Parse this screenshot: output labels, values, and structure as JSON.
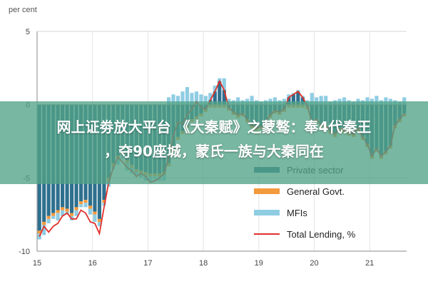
{
  "unit_label": "per cent",
  "chart_data": {
    "type": "bar",
    "ylim": [
      -10,
      5
    ],
    "yticks": [
      5,
      0,
      -5,
      -10
    ],
    "xticks": [
      "15",
      "16",
      "17",
      "18",
      "19",
      "20",
      "21"
    ],
    "grid": true,
    "legend_position": "bottom-right",
    "months": 80,
    "series": [
      {
        "name": "Private sector",
        "type": "bar",
        "color": "#2e6f8e",
        "values": [
          -8.6,
          -8.0,
          -7.6,
          -7.4,
          -7.2,
          -7.0,
          -7.1,
          -7.4,
          -7.0,
          -6.6,
          -6.5,
          -6.9,
          -7.3,
          -7.8,
          -6.5,
          -5.0,
          -4.0,
          -3.5,
          -3.2,
          -3.8,
          -4.1,
          -4.4,
          -4.5,
          -4.6,
          -4.7,
          -4.7,
          -4.7,
          -4.6,
          -4.0,
          -3.0,
          -2.2,
          -1.8,
          -1.4,
          -1.0,
          -0.8,
          -0.6,
          -0.3,
          0.3,
          0.9,
          1.6,
          1.0,
          -0.2,
          -0.5,
          -0.7,
          -0.6,
          -1.0,
          -1.4,
          -1.6,
          -1.5,
          -1.2,
          -0.7,
          -0.4,
          -0.5,
          -0.3,
          0.5,
          0.7,
          0.9,
          0.5,
          -0.1,
          -1.2,
          -1.0,
          -1.4,
          -1.4,
          -1.8,
          -2.0,
          -1.6,
          -1.7,
          -1.9,
          -2.0,
          -1.6,
          -2.2,
          -2.7,
          -3.5,
          -3.0,
          -3.5,
          -3.2,
          -2.8,
          -1.4,
          -1.0,
          -0.6
        ]
      },
      {
        "name": "General Govt.",
        "type": "bar",
        "color": "#f39a3d",
        "values": [
          -0.2,
          -0.2,
          -0.2,
          -0.2,
          -0.2,
          -0.2,
          -0.2,
          -0.2,
          -0.2,
          -0.2,
          -0.2,
          -0.2,
          -0.2,
          -0.2,
          -0.2,
          -0.2,
          -0.2,
          -0.2,
          -0.2,
          -0.2,
          -0.2,
          -0.2,
          -0.2,
          -0.2,
          -0.2,
          -0.2,
          -0.2,
          -0.2,
          -0.2,
          -0.2,
          -0.2,
          -0.2,
          -0.2,
          -0.2,
          -0.2,
          -0.2,
          -0.2,
          -0.2,
          -0.2,
          -0.2,
          -0.2,
          -0.2,
          -0.2,
          -0.2,
          -0.2,
          -0.2,
          -0.2,
          -0.2,
          -0.2,
          -0.2,
          -0.2,
          -0.2,
          -0.2,
          -0.2,
          -0.2,
          -0.2,
          -0.2,
          -0.2,
          -0.2,
          -0.2,
          -0.2,
          -0.2,
          -0.2,
          -0.2,
          -0.2,
          -0.2,
          -0.2,
          -0.2,
          -0.2,
          -0.2,
          -0.2,
          -0.2,
          -0.2,
          -0.2,
          -0.2,
          -0.2,
          -0.2,
          -0.2,
          -0.2,
          -0.2
        ]
      },
      {
        "name": "MFIs",
        "type": "bar",
        "color": "#8fcde3",
        "values": [
          -0.4,
          -0.7,
          -0.3,
          -0.2,
          -0.5,
          -0.4,
          -0.2,
          -0.3,
          -0.4,
          -0.2,
          -0.3,
          -0.4,
          -0.5,
          -0.3,
          -0.2,
          -0.4,
          -0.2,
          -0.4,
          -0.3,
          -0.5,
          -0.4,
          -0.2,
          -0.3,
          -0.4,
          -0.3,
          -0.2,
          -0.3,
          -0.4,
          0.5,
          0.7,
          0.6,
          0.9,
          1.2,
          0.8,
          0.9,
          0.7,
          0.6,
          0.5,
          0.4,
          0.2,
          0.8,
          0.4,
          0.3,
          0.5,
          0.3,
          0.4,
          0.6,
          0.3,
          0.2,
          0.3,
          0.4,
          0.5,
          0.3,
          0.4,
          0.2,
          0.1,
          0.1,
          0.1,
          0.3,
          0.8,
          0.5,
          0.6,
          0.6,
          0.2,
          0.3,
          0.4,
          0.5,
          0.3,
          0.2,
          0.4,
          0.3,
          0.5,
          0.4,
          0.6,
          0.3,
          0.5,
          0.4,
          0.3,
          0.2,
          0.5
        ]
      },
      {
        "name": "Total Lending, %",
        "type": "line",
        "color": "#e1302c",
        "values": [
          -9.0,
          -8.3,
          -8.7,
          -8.3,
          -8.1,
          -7.6,
          -7.4,
          -7.8,
          -7.8,
          -7.2,
          -7.4,
          -8.0,
          -8.1,
          -8.8,
          -7.0,
          -5.3,
          -4.3,
          -3.6,
          -3.9,
          -4.3,
          -4.5,
          -4.9,
          -4.7,
          -4.9,
          -5.3,
          -5.2,
          -5.0,
          -4.7,
          -3.6,
          -2.1,
          -1.2,
          -1.3,
          -0.7,
          -0.3,
          0.2,
          -0.2,
          -0.3,
          0.3,
          0.9,
          1.6,
          1.0,
          -0.2,
          -0.5,
          -0.7,
          -0.6,
          -1.0,
          -1.4,
          -1.6,
          -1.5,
          -1.2,
          -0.7,
          -0.4,
          -0.5,
          -0.3,
          0.5,
          0.7,
          0.9,
          0.5,
          -0.1,
          -1.2,
          -1.0,
          -1.4,
          -1.4,
          -1.8,
          -2.0,
          -1.6,
          -1.7,
          -1.9,
          -2.0,
          -1.6,
          -2.2,
          -2.7,
          -3.5,
          -3.0,
          -3.5,
          -3.2,
          -2.8,
          -1.4,
          -1.0,
          -0.6
        ]
      }
    ]
  },
  "banner": {
    "line1": "网上证劵放大平台 《大秦赋》之蒙骜：奉4代秦王",
    "line2": "，夺90座城，蒙氏一族与大秦同在"
  }
}
